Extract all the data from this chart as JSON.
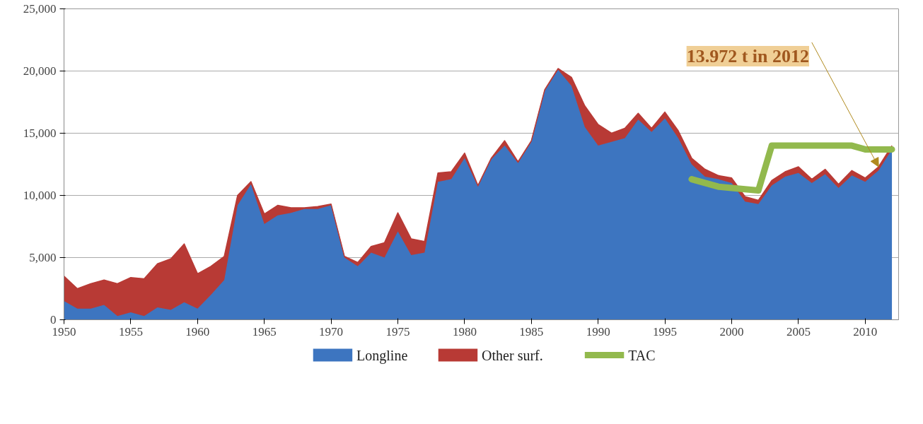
{
  "chart_data": {
    "type": "area",
    "stacked": true,
    "x": [
      1950,
      1951,
      1952,
      1953,
      1954,
      1955,
      1956,
      1957,
      1958,
      1959,
      1960,
      1961,
      1962,
      1963,
      1964,
      1965,
      1966,
      1967,
      1968,
      1969,
      1970,
      1971,
      1972,
      1973,
      1974,
      1975,
      1976,
      1977,
      1978,
      1979,
      1980,
      1981,
      1982,
      1983,
      1984,
      1985,
      1986,
      1987,
      1988,
      1989,
      1990,
      1991,
      1992,
      1993,
      1994,
      1995,
      1996,
      1997,
      1998,
      1999,
      2000,
      2001,
      2002,
      2003,
      2004,
      2005,
      2006,
      2007,
      2008,
      2009,
      2010,
      2011,
      2012
    ],
    "series": [
      {
        "name": "Longline",
        "color": "#3d75c0",
        "values": [
          1500,
          900,
          900,
          1200,
          300,
          600,
          300,
          1000,
          800,
          1400,
          900,
          2000,
          3200,
          9200,
          10900,
          7700,
          8400,
          8600,
          8900,
          8900,
          9200,
          5000,
          4300,
          5400,
          5000,
          7100,
          5200,
          5400,
          11100,
          11300,
          13000,
          10700,
          12900,
          14000,
          12600,
          14300,
          18400,
          20100,
          18800,
          15500,
          14000,
          14300,
          14600,
          16100,
          15100,
          16200,
          14600,
          12500,
          11500,
          11300,
          11000,
          9500,
          9300,
          10800,
          11500,
          11800,
          11000,
          11700,
          10600,
          11600,
          11100,
          12000,
          13700
        ]
      },
      {
        "name": "Other surf.",
        "color": "#b83a35",
        "values": [
          2000,
          1600,
          2000,
          2000,
          2600,
          2800,
          3000,
          3500,
          4100,
          4700,
          2800,
          2300,
          1900,
          800,
          200,
          800,
          800,
          400,
          100,
          200,
          100,
          100,
          300,
          500,
          1200,
          1500,
          1300,
          900,
          700,
          600,
          400,
          100,
          100,
          400,
          100,
          100,
          100,
          100,
          700,
          1700,
          1700,
          700,
          800,
          500,
          300,
          500,
          600,
          500,
          600,
          300,
          400,
          400,
          300,
          400,
          400,
          500,
          300,
          400,
          300,
          400,
          300,
          300,
          300
        ]
      },
      {
        "name": "TAC",
        "type": "line",
        "color": "#92b94d",
        "x": [
          1997,
          1998,
          1999,
          2000,
          2001,
          2002,
          2003,
          2004,
          2005,
          2006,
          2007,
          2008,
          2009,
          2010,
          2011,
          2012
        ],
        "values": [
          11300,
          11000,
          10700,
          10600,
          10500,
          10400,
          14000,
          14000,
          14000,
          14000,
          14000,
          14000,
          14000,
          13700,
          13700,
          13700
        ]
      }
    ],
    "xlim": [
      1950,
      2012.5
    ],
    "xticks": [
      1950,
      1955,
      1960,
      1965,
      1970,
      1975,
      1980,
      1985,
      1990,
      1995,
      2000,
      2005,
      2010
    ],
    "ylim": [
      0,
      25000
    ],
    "yticks": [
      0,
      {
        "value": 5000,
        "label": "5,000"
      },
      {
        "value": 10000,
        "label": "10,000"
      },
      {
        "value": 15000,
        "label": "15,000"
      },
      {
        "value": 20000,
        "label": "20,000"
      },
      {
        "value": 25000,
        "label": "25,000"
      }
    ],
    "grid": "y",
    "legend": "bottom",
    "annotations": [
      {
        "text": "13.972 t in 2012",
        "x": 2011,
        "y": 12300
      }
    ]
  }
}
